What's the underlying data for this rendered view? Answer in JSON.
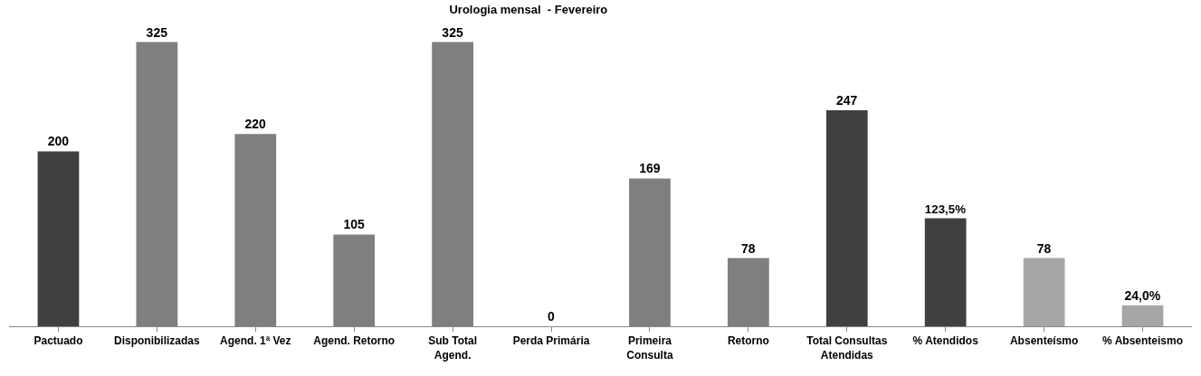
{
  "chart_data": {
    "type": "bar",
    "title": "Urologia mensal  - Fevereiro",
    "categories": [
      "Pactuado",
      "Disponibilizadas",
      "Agend. 1ª Vez",
      "Agend. Retorno",
      "Sub Total Agend.",
      "Perda Primária",
      "Primeira Consulta",
      "Retorno",
      "Total Consultas Atendidas",
      "% Atendidos",
      "Absenteísmo",
      "% Absenteismo"
    ],
    "values": [
      200,
      325,
      220,
      105,
      325,
      0,
      169,
      78,
      247,
      123.5,
      78,
      24.0
    ],
    "value_labels": [
      "200",
      "325",
      "220",
      "105",
      "325",
      "0",
      "169",
      "78",
      "247",
      "123,5%",
      "78",
      "24,0%"
    ],
    "colors": [
      "#404040",
      "#7f7f7f",
      "#7f7f7f",
      "#7f7f7f",
      "#7f7f7f",
      "#7f7f7f",
      "#7f7f7f",
      "#7f7f7f",
      "#404040",
      "#404040",
      "#a6a6a6",
      "#a6a6a6"
    ]
  }
}
